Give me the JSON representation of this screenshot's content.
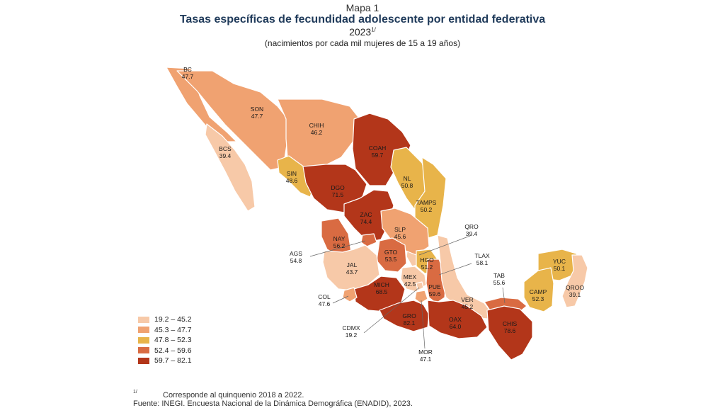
{
  "header": {
    "kicker": "Mapa 1",
    "title": "Tasas específicas de fecundidad adolescente por entidad federativa",
    "year": "2023",
    "year_note": "1/",
    "units": "(nacimientos por cada mil mujeres de 15 a 19 años)"
  },
  "colors": {
    "c1": "#f7c9a8",
    "c2": "#f0a271",
    "c3": "#e8b44a",
    "c4": "#d96b42",
    "c5": "#b3361a",
    "border": "#ffffff"
  },
  "legend": [
    {
      "label": "19.2 – 45.2",
      "color": "#f7c9a8"
    },
    {
      "label": "45.3 – 47.7",
      "color": "#f0a271"
    },
    {
      "label": "47.8 – 52.3",
      "color": "#e8b44a"
    },
    {
      "label": "52.4 – 59.6",
      "color": "#d96b42"
    },
    {
      "label": "59.7 – 82.1",
      "color": "#b3361a"
    }
  ],
  "states": [
    {
      "abbr": "BC",
      "value": "47.7",
      "class": 2
    },
    {
      "abbr": "SON",
      "value": "47.7",
      "class": 2
    },
    {
      "abbr": "CHIH",
      "value": "46.2",
      "class": 2
    },
    {
      "abbr": "BCS",
      "value": "39.4",
      "class": 1
    },
    {
      "abbr": "COAH",
      "value": "59.7",
      "class": 5
    },
    {
      "abbr": "SIN",
      "value": "48.6",
      "class": 3
    },
    {
      "abbr": "DGO",
      "value": "71.5",
      "class": 5
    },
    {
      "abbr": "NL",
      "value": "50.8",
      "class": 3
    },
    {
      "abbr": "TAMPS",
      "value": "50.2",
      "class": 3
    },
    {
      "abbr": "ZAC",
      "value": "74.4",
      "class": 5
    },
    {
      "abbr": "QRO",
      "value": "39.4",
      "class": 1
    },
    {
      "abbr": "SLP",
      "value": "45.6",
      "class": 2
    },
    {
      "abbr": "NAY",
      "value": "56.2",
      "class": 4
    },
    {
      "abbr": "AGS",
      "value": "54.8",
      "class": 4
    },
    {
      "abbr": "GTO",
      "value": "53.5",
      "class": 4
    },
    {
      "abbr": "HGO",
      "value": "51.2",
      "class": 3
    },
    {
      "abbr": "TLAX",
      "value": "58.1",
      "class": 4
    },
    {
      "abbr": "JAL",
      "value": "43.7",
      "class": 1
    },
    {
      "abbr": "MEX",
      "value": "42.5",
      "class": 1
    },
    {
      "abbr": "YUC",
      "value": "50.1",
      "class": 3
    },
    {
      "abbr": "TAB",
      "value": "55.6",
      "class": 4
    },
    {
      "abbr": "MICH",
      "value": "68.5",
      "class": 5
    },
    {
      "abbr": "PUE",
      "value": "59.6",
      "class": 4
    },
    {
      "abbr": "CAMP",
      "value": "52.3",
      "class": 3
    },
    {
      "abbr": "QROO",
      "value": "39.1",
      "class": 1
    },
    {
      "abbr": "COL",
      "value": "47.6",
      "class": 2
    },
    {
      "abbr": "VER",
      "value": "45.2",
      "class": 1
    },
    {
      "abbr": "GRO",
      "value": "82.1",
      "class": 5
    },
    {
      "abbr": "OAX",
      "value": "64.0",
      "class": 5
    },
    {
      "abbr": "CHIS",
      "value": "78.6",
      "class": 5
    },
    {
      "abbr": "CDMX",
      "value": "19.2",
      "class": 1
    },
    {
      "abbr": "MOR",
      "value": "47.1",
      "class": 2
    }
  ],
  "footnote": {
    "marker": "1/",
    "text": "Corresponde al quinquenio 2018 a 2022.",
    "source": "Fuente: INEGI. Encuesta Nacional de la Dinámica Demográfica (ENADID), 2023."
  }
}
